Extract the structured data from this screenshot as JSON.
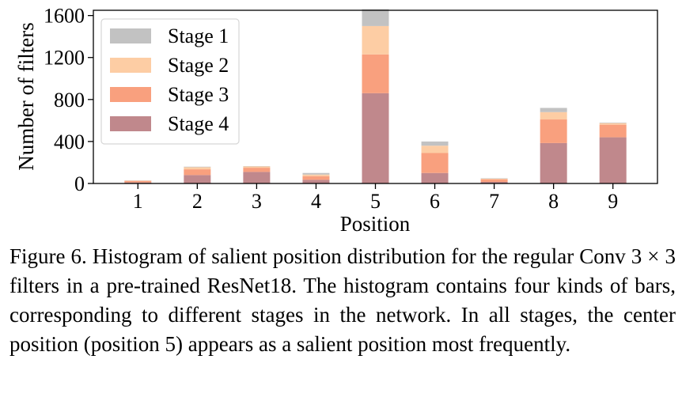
{
  "chart_data": {
    "type": "bar",
    "stacked": true,
    "categories": [
      "1",
      "2",
      "3",
      "4",
      "5",
      "6",
      "7",
      "8",
      "9"
    ],
    "series": [
      {
        "name": "Stage 4",
        "color": "#c0888c",
        "values": [
          10,
          80,
          110,
          35,
          860,
          100,
          15,
          385,
          440
        ]
      },
      {
        "name": "Stage 3",
        "color": "#f9a07e",
        "values": [
          15,
          55,
          40,
          35,
          370,
          190,
          25,
          225,
          120
        ]
      },
      {
        "name": "Stage 2",
        "color": "#fdcda4",
        "values": [
          3,
          20,
          12,
          15,
          270,
          70,
          6,
          70,
          15
        ]
      },
      {
        "name": "Stage 1",
        "color": "#c2c2c2",
        "values": [
          2,
          5,
          3,
          15,
          160,
          40,
          4,
          40,
          5
        ]
      }
    ],
    "xlabel": "Position",
    "ylabel": "Number of filters",
    "ylim": [
      0,
      1600
    ],
    "yticks": [
      "0",
      "400",
      "800",
      "1200",
      "1600"
    ],
    "grid": false,
    "legend_position": "top-left",
    "legend_order": [
      "Stage 1",
      "Stage 2",
      "Stage 3",
      "Stage 4"
    ]
  },
  "caption": "Figure 6. Histogram of salient position distribution for the regular Conv 3 × 3 filters in a pre-trained ResNet18. The histogram contains four kinds of bars, corresponding to different stages in the network. In all stages, the center position (position 5) appears as a salient position most frequently."
}
